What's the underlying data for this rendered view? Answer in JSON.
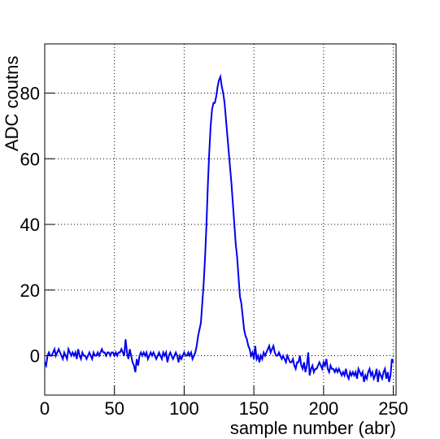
{
  "chart_data": {
    "type": "line",
    "xlabel": "sample number (abr)",
    "ylabel": "ADC coutns",
    "xlim": [
      0,
      252
    ],
    "ylim": [
      -12,
      95
    ],
    "xticks": [
      0,
      50,
      100,
      150,
      200,
      250
    ],
    "yticks": [
      0,
      20,
      40,
      60,
      80
    ],
    "grid": true,
    "x": [
      0,
      1,
      2,
      3,
      4,
      5,
      6,
      7,
      8,
      9,
      10,
      11,
      12,
      13,
      14,
      15,
      16,
      17,
      18,
      19,
      20,
      21,
      22,
      23,
      24,
      25,
      26,
      27,
      28,
      29,
      30,
      31,
      32,
      33,
      34,
      35,
      36,
      37,
      38,
      39,
      40,
      41,
      42,
      43,
      44,
      45,
      46,
      47,
      48,
      49,
      50,
      51,
      52,
      53,
      54,
      55,
      56,
      57,
      58,
      59,
      60,
      61,
      62,
      63,
      64,
      65,
      66,
      67,
      68,
      69,
      70,
      71,
      72,
      73,
      74,
      75,
      76,
      77,
      78,
      79,
      80,
      81,
      82,
      83,
      84,
      85,
      86,
      87,
      88,
      89,
      90,
      91,
      92,
      93,
      94,
      95,
      96,
      97,
      98,
      99,
      100,
      101,
      102,
      103,
      104,
      105,
      106,
      107,
      108,
      109,
      110,
      111,
      112,
      113,
      114,
      115,
      116,
      117,
      118,
      119,
      120,
      121,
      122,
      123,
      124,
      125,
      126,
      127,
      128,
      129,
      130,
      131,
      132,
      133,
      134,
      135,
      136,
      137,
      138,
      139,
      140,
      141,
      142,
      143,
      144,
      145,
      146,
      147,
      148,
      149,
      150,
      151,
      152,
      153,
      154,
      155,
      156,
      157,
      158,
      159,
      160,
      161,
      162,
      163,
      164,
      165,
      166,
      167,
      168,
      169,
      170,
      171,
      172,
      173,
      174,
      175,
      176,
      177,
      178,
      179,
      180,
      181,
      182,
      183,
      184,
      185,
      186,
      187,
      188,
      189,
      190,
      191,
      192,
      193,
      194,
      195,
      196,
      197,
      198,
      199,
      200,
      201,
      202,
      203,
      204,
      205,
      206,
      207,
      208,
      209,
      210,
      211,
      212,
      213,
      214,
      215,
      216,
      217,
      218,
      219,
      220,
      221,
      222,
      223,
      224,
      225,
      226,
      227,
      228,
      229,
      230,
      231,
      232,
      233,
      234,
      235,
      236,
      237,
      238,
      239,
      240,
      241,
      242,
      243,
      244,
      245,
      246,
      247,
      248,
      249,
      250
    ],
    "series": [
      {
        "color": "#0000ee",
        "values": [
          -2,
          -3,
          0,
          1,
          0,
          0,
          1,
          2,
          0,
          1,
          2,
          1,
          0,
          -1,
          1,
          0,
          -1,
          2,
          1,
          0,
          1,
          0,
          1,
          -1,
          2,
          0,
          -1,
          1,
          0,
          0,
          -1,
          0,
          1,
          0,
          -1,
          1,
          0,
          0,
          1,
          0,
          1,
          2,
          1,
          1,
          0,
          1,
          1,
          0,
          1,
          1,
          0,
          1,
          0,
          1,
          1,
          2,
          1,
          0,
          5,
          1,
          -1,
          2,
          0,
          -2,
          -3,
          -5,
          -1,
          -3,
          0,
          1,
          0,
          1,
          0,
          1,
          -1,
          0,
          1,
          0,
          1,
          0,
          -1,
          0,
          1,
          0,
          -1,
          1,
          0,
          1,
          -2,
          0,
          1,
          0,
          -1,
          0,
          1,
          0,
          -2,
          0,
          -1,
          0,
          1,
          0,
          0,
          1,
          0,
          1,
          -1,
          0,
          1,
          3,
          6,
          8,
          10,
          16,
          22,
          30,
          40,
          52,
          62,
          70,
          75,
          77,
          77,
          79,
          82,
          84,
          85,
          82,
          80,
          77,
          72,
          67,
          62,
          57,
          52,
          46,
          40,
          34,
          30,
          24,
          18,
          16,
          12,
          8,
          6,
          5,
          3,
          2,
          0,
          1,
          -1,
          3,
          -1,
          0,
          -2,
          0,
          -1,
          1,
          0,
          1,
          2,
          3,
          1,
          2,
          3,
          1,
          0,
          0,
          1,
          0,
          -1,
          0,
          -1,
          -2,
          0,
          -1,
          -2,
          -2,
          -1,
          -3,
          -4,
          -2,
          -2,
          0,
          -3,
          -4,
          -2,
          -5,
          -3,
          1,
          -6,
          -4,
          -3,
          -5,
          -4,
          -4,
          -3,
          -2,
          -3,
          -4,
          -2,
          -3,
          -1,
          -4,
          -5,
          -3,
          -4,
          -4,
          -5,
          -4,
          -5,
          -4,
          -5,
          -6,
          -5,
          -6,
          -4,
          -6,
          -7,
          -5,
          -6,
          -5,
          -6,
          -5,
          -7,
          -4,
          -5,
          -6,
          -5,
          -8,
          -6,
          -7,
          -5,
          -4,
          -6,
          -5,
          -7,
          -6,
          -4,
          -8,
          -5,
          -6,
          -7,
          -5,
          -4,
          -7,
          -5,
          -8,
          -6,
          -1,
          -2
        ]
      }
    ]
  }
}
